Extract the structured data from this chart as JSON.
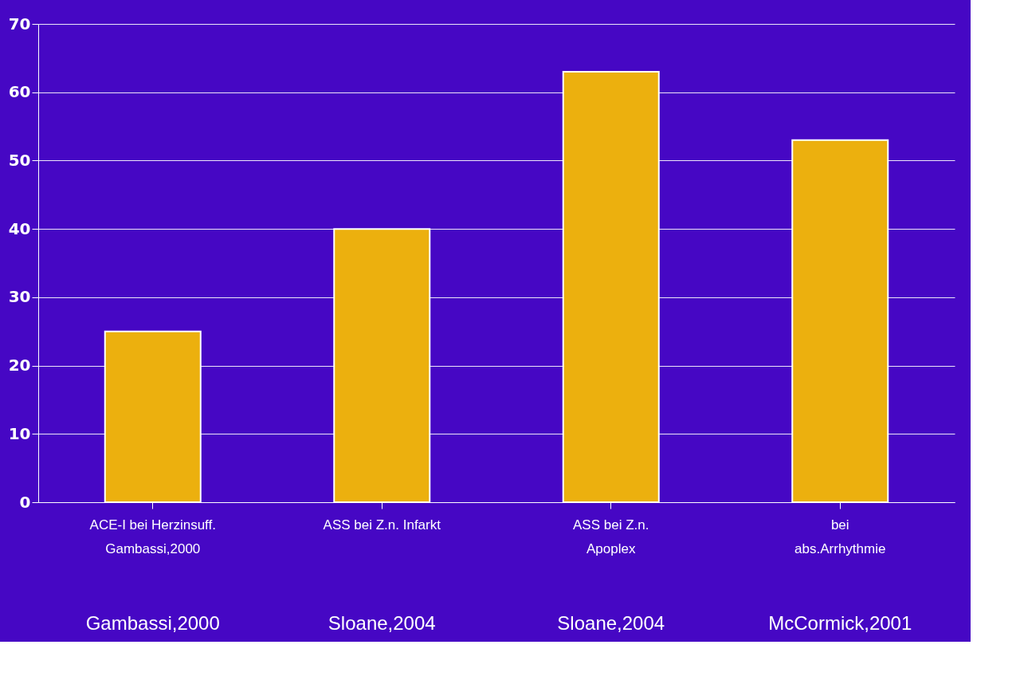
{
  "chart_data": {
    "type": "bar",
    "categories": [
      "ACE-I bei Herzinsuff.\nGambassi,2000",
      "ASS bei Z.n. Infarkt",
      "ASS bei Z.n.\nApoplex",
      "bei\nabs.Arrhythmie"
    ],
    "values": [
      25,
      40,
      63,
      53
    ],
    "color": "#ecb00e",
    "ylim": [
      0,
      70
    ],
    "yticks": [
      0,
      10,
      20,
      30,
      40,
      50,
      60,
      70
    ],
    "grid": "y",
    "annotations": [
      "Gambassi,2000",
      "Sloane,2004",
      "Sloane,2004",
      "McCormick,2001"
    ]
  }
}
